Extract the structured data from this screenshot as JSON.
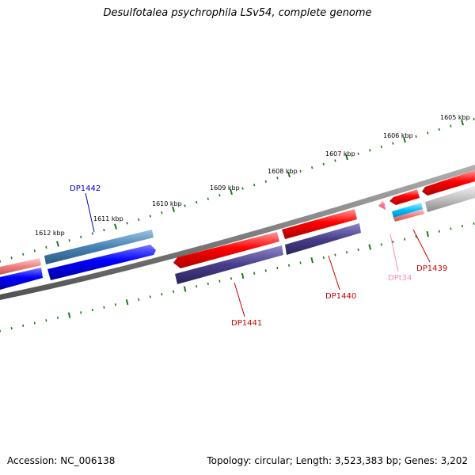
{
  "title": "Desulfotalea psychrophila LSv54, complete genome",
  "footer": {
    "accession": "Accession: NC_006138",
    "summary": "Topology: circular; Length: 3,523,383 bp; Genes: 3,202"
  },
  "scale_labels": [
    "1605 kbp",
    "1606 kbp",
    "1607 kbp",
    "1608 kbp",
    "1609 kbp",
    "1610 kbp",
    "1611 kbp",
    "1612 kbp"
  ],
  "gene_labels": {
    "dp1442": "DP1442",
    "dp1441": "DP1441",
    "dp1440": "DP1440",
    "dp1439": "DP1439",
    "dpt34": "DPt34"
  },
  "colors": {
    "backbone": "#808080",
    "ticks": "#1a7a1a",
    "red_gene": "#ff0000",
    "light_red_gene": "#f08080",
    "blue_gene": "#0000ff",
    "steel_blue_gene": "#4682b4",
    "slate_gene": "#483d8b",
    "cyan_gene": "#00bfff",
    "grey_gene": "#c0c0c0",
    "trna": "#ff69b4",
    "label_blue": "#0000cc",
    "label_red": "#cc0000",
    "label_pink": "#ff88bb"
  }
}
